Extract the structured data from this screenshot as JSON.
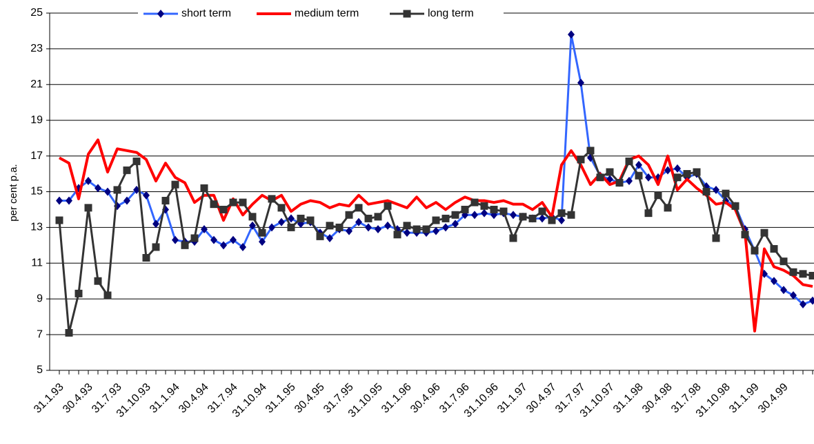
{
  "chart_data": {
    "type": "line",
    "y_label": "per cent p.a.",
    "categories": [
      "31.1.93",
      null,
      null,
      "30.4.93",
      null,
      null,
      "31.7.93",
      null,
      null,
      "31.10.93",
      null,
      null,
      "31.1.94",
      null,
      null,
      "30.4.94",
      null,
      null,
      "31.7.94",
      null,
      null,
      "31.10.94",
      null,
      null,
      "31.1.95",
      null,
      null,
      "30.4.95",
      null,
      null,
      "31.7.95",
      null,
      null,
      "31.10.95",
      null,
      null,
      "31.1.96",
      null,
      null,
      "30.4.96",
      null,
      null,
      "31.7.96",
      null,
      null,
      "31.10.96",
      null,
      null,
      "31.1.97",
      null,
      null,
      "30.4.97",
      null,
      null,
      "31.7.97",
      null,
      null,
      "31.10.97",
      null,
      null,
      "31.1.98",
      null,
      null,
      "30.4.98",
      null,
      null,
      "31.7.98",
      null,
      null,
      "31.10.98",
      null,
      null,
      "31.1.99",
      null,
      null,
      "30.4.99",
      null,
      null,
      null
    ],
    "series": [
      {
        "name": "short term",
        "color": "#3366ff",
        "marker": "diamond",
        "marker_color": "#000080",
        "values": [
          14.5,
          14.5,
          15.2,
          15.6,
          15.2,
          15.0,
          14.2,
          14.5,
          15.1,
          14.8,
          13.2,
          14.0,
          12.3,
          12.2,
          12.2,
          12.9,
          12.3,
          12.0,
          12.3,
          11.9,
          13.1,
          12.2,
          13.0,
          13.3,
          13.5,
          13.2,
          13.3,
          12.7,
          12.4,
          12.9,
          12.8,
          13.3,
          13.0,
          12.9,
          13.1,
          12.9,
          12.7,
          12.7,
          12.7,
          12.8,
          13.0,
          13.2,
          13.7,
          13.7,
          13.8,
          13.7,
          13.8,
          13.7,
          13.6,
          13.5,
          13.5,
          13.6,
          13.4,
          23.8,
          21.1,
          16.9,
          15.9,
          15.7,
          15.5,
          15.6,
          16.5,
          15.8,
          15.8,
          16.2,
          16.3,
          15.8,
          16.0,
          15.3,
          15.1,
          14.5,
          14.2,
          12.9,
          11.7,
          10.4,
          10.0,
          9.5,
          9.2,
          8.7,
          8.9
        ]
      },
      {
        "name": "medium term",
        "color": "#ff0000",
        "marker": null,
        "marker_color": null,
        "values": [
          16.9,
          16.6,
          14.6,
          17.1,
          17.9,
          16.1,
          17.4,
          17.3,
          17.2,
          16.8,
          15.6,
          16.6,
          15.8,
          15.5,
          14.4,
          14.8,
          14.8,
          13.4,
          14.6,
          13.7,
          14.3,
          14.8,
          14.5,
          14.8,
          13.9,
          14.3,
          14.5,
          14.4,
          14.1,
          14.3,
          14.2,
          14.8,
          14.3,
          14.4,
          14.5,
          14.3,
          14.1,
          14.7,
          14.1,
          14.4,
          14.0,
          14.4,
          14.7,
          14.5,
          14.5,
          14.4,
          14.5,
          14.3,
          14.3,
          14.0,
          14.4,
          13.6,
          16.5,
          17.3,
          16.5,
          15.4,
          16.0,
          15.4,
          15.6,
          16.8,
          17.0,
          16.5,
          15.4,
          17.0,
          15.1,
          15.7,
          15.2,
          14.8,
          14.3,
          14.4,
          14.0,
          12.7,
          7.2,
          11.8,
          10.8,
          10.6,
          10.3,
          9.8,
          9.7
        ]
      },
      {
        "name": "long term",
        "color": "#333333",
        "marker": "square",
        "marker_color": "#333333",
        "values": [
          13.4,
          7.1,
          9.3,
          14.1,
          10.0,
          9.2,
          15.1,
          16.2,
          16.7,
          11.3,
          11.9,
          14.5,
          15.4,
          12.0,
          12.4,
          15.2,
          14.3,
          14.0,
          14.4,
          14.4,
          13.6,
          12.7,
          14.6,
          14.1,
          13.0,
          13.5,
          13.4,
          12.5,
          13.1,
          13.0,
          13.7,
          14.1,
          13.5,
          13.6,
          14.2,
          12.6,
          13.1,
          12.9,
          12.9,
          13.4,
          13.5,
          13.7,
          14.0,
          14.4,
          14.2,
          14.0,
          13.9,
          12.4,
          13.6,
          13.5,
          13.9,
          13.4,
          13.8,
          13.7,
          16.8,
          17.3,
          15.8,
          16.1,
          15.5,
          16.7,
          15.9,
          13.8,
          14.8,
          14.1,
          15.8,
          16.0,
          16.1,
          15.0,
          12.4,
          14.9,
          14.2,
          12.6,
          11.7,
          12.7,
          11.8,
          11.1,
          10.5,
          10.4,
          10.3
        ]
      }
    ],
    "ylim": [
      5,
      25
    ],
    "yticks": [
      5,
      7,
      9,
      11,
      13,
      15,
      17,
      19,
      21,
      23,
      25
    ],
    "grid": true,
    "legend": "top"
  }
}
